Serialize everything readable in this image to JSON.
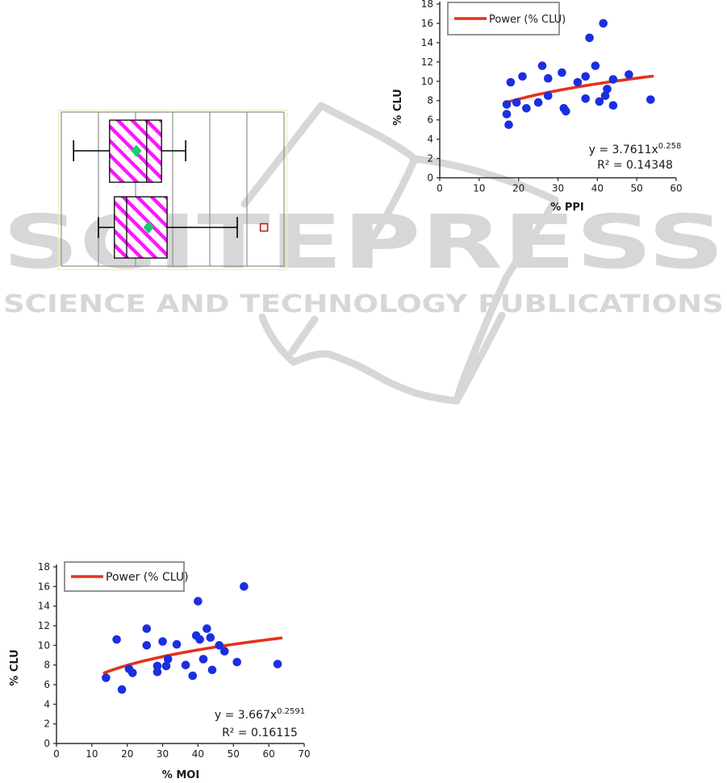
{
  "watermark": {
    "title": "SCITEPRESS",
    "subtitle": "SCIENCE AND TECHNOLOGY PUBLICATIONS"
  },
  "colors": {
    "watermark_gray": "#d7d7d7",
    "point_blue": "#1a2fe0",
    "trend_red": "#e5321a",
    "hatch_magenta": "#ff14ff",
    "mean_green": "#12d06e",
    "outlier_red": "#cc1414",
    "grid_gray": "#909090",
    "axis_dark": "#303030",
    "legend_border": "#8a8a8a",
    "accent_pale_yellow": "#f2edbe",
    "text_black": "#1a1a1a"
  },
  "chart_data": [
    {
      "id": "boxplot",
      "type": "boxplot",
      "orientation": "horizontal",
      "title": "",
      "xlabel": "",
      "ylabel": "",
      "x_range": [
        0,
        6
      ],
      "gridlines_x": [
        0,
        1,
        2,
        3,
        4,
        5,
        6
      ],
      "grid": true,
      "series": [
        {
          "name": "box-top",
          "whisker_low": 0.33,
          "q1": 1.3,
          "median": 2.3,
          "q3": 2.7,
          "whisker_high": 3.35,
          "mean": 2.02,
          "outliers": []
        },
        {
          "name": "box-bottom",
          "whisker_low": 1.0,
          "q1": 1.43,
          "median": 1.76,
          "q3": 2.85,
          "whisker_high": 4.74,
          "mean": 2.35,
          "outliers": [
            5.46
          ]
        }
      ]
    },
    {
      "id": "scatter_ppi",
      "type": "scatter",
      "title": "",
      "xlabel": "% PPI",
      "ylabel": "% CLU",
      "xlim": [
        0,
        60
      ],
      "ylim": [
        0,
        18
      ],
      "xticks": [
        0,
        10,
        20,
        30,
        40,
        50,
        60
      ],
      "yticks": [
        0,
        2,
        4,
        6,
        8,
        10,
        12,
        14,
        16,
        18
      ],
      "grid": false,
      "legend": "Power (% CLU)",
      "legend_position": "top-left",
      "points": [
        [
          17,
          7.6
        ],
        [
          17,
          6.6
        ],
        [
          17.5,
          5.5
        ],
        [
          18,
          9.9
        ],
        [
          19.5,
          7.8
        ],
        [
          21,
          10.5
        ],
        [
          22,
          7.2
        ],
        [
          25,
          7.8
        ],
        [
          26,
          11.6
        ],
        [
          27.5,
          10.3
        ],
        [
          27.5,
          8.5
        ],
        [
          31,
          10.9
        ],
        [
          31.5,
          7.2
        ],
        [
          32,
          6.9
        ],
        [
          35,
          9.9
        ],
        [
          37,
          10.5
        ],
        [
          37,
          8.2
        ],
        [
          38,
          14.5
        ],
        [
          39.5,
          11.6
        ],
        [
          40.5,
          7.9
        ],
        [
          41.5,
          16
        ],
        [
          42,
          8.5
        ],
        [
          42.5,
          9.2
        ],
        [
          44,
          10.2
        ],
        [
          44,
          7.5
        ],
        [
          48,
          10.7
        ],
        [
          53.5,
          8.1
        ]
      ],
      "trendline": {
        "type": "power",
        "coef": 3.7611,
        "exp": 0.258,
        "x_start": 17,
        "x_end": 54
      },
      "equation_base": "y = 3.7611x",
      "equation_exponent": "0.258",
      "r_squared": "R² = 0.14348"
    },
    {
      "id": "scatter_moi",
      "type": "scatter",
      "title": "",
      "xlabel": "% MOI",
      "ylabel": "% CLU",
      "xlim": [
        0,
        70
      ],
      "ylim": [
        0,
        18
      ],
      "xticks": [
        0,
        10,
        20,
        30,
        40,
        50,
        60,
        70
      ],
      "yticks": [
        0,
        2,
        4,
        6,
        8,
        10,
        12,
        14,
        16,
        18
      ],
      "grid": false,
      "legend": "Power (% CLU)",
      "legend_position": "top-left",
      "points": [
        [
          14,
          6.7
        ],
        [
          17,
          10.6
        ],
        [
          18.5,
          5.5
        ],
        [
          20.5,
          7.6
        ],
        [
          21.5,
          7.2
        ],
        [
          25.5,
          11.7
        ],
        [
          25.5,
          10.0
        ],
        [
          28.5,
          7.9
        ],
        [
          28.5,
          7.3
        ],
        [
          30,
          10.4
        ],
        [
          31,
          7.9
        ],
        [
          31.5,
          8.6
        ],
        [
          34,
          10.1
        ],
        [
          36.5,
          8.0
        ],
        [
          38.5,
          6.9
        ],
        [
          39.5,
          11.0
        ],
        [
          40,
          14.5
        ],
        [
          40.5,
          10.6
        ],
        [
          41.5,
          8.6
        ],
        [
          42.5,
          11.7
        ],
        [
          43.5,
          10.8
        ],
        [
          44,
          7.5
        ],
        [
          46,
          10.0
        ],
        [
          47.5,
          9.4
        ],
        [
          51,
          8.3
        ],
        [
          53,
          16
        ],
        [
          62.5,
          8.1
        ]
      ],
      "trendline": {
        "type": "power",
        "coef": 3.667,
        "exp": 0.2591,
        "x_start": 13.5,
        "x_end": 63.5
      },
      "equation_base": "y = 3.667x",
      "equation_exponent": "0.2591",
      "r_squared": "R² = 0.16115"
    }
  ]
}
